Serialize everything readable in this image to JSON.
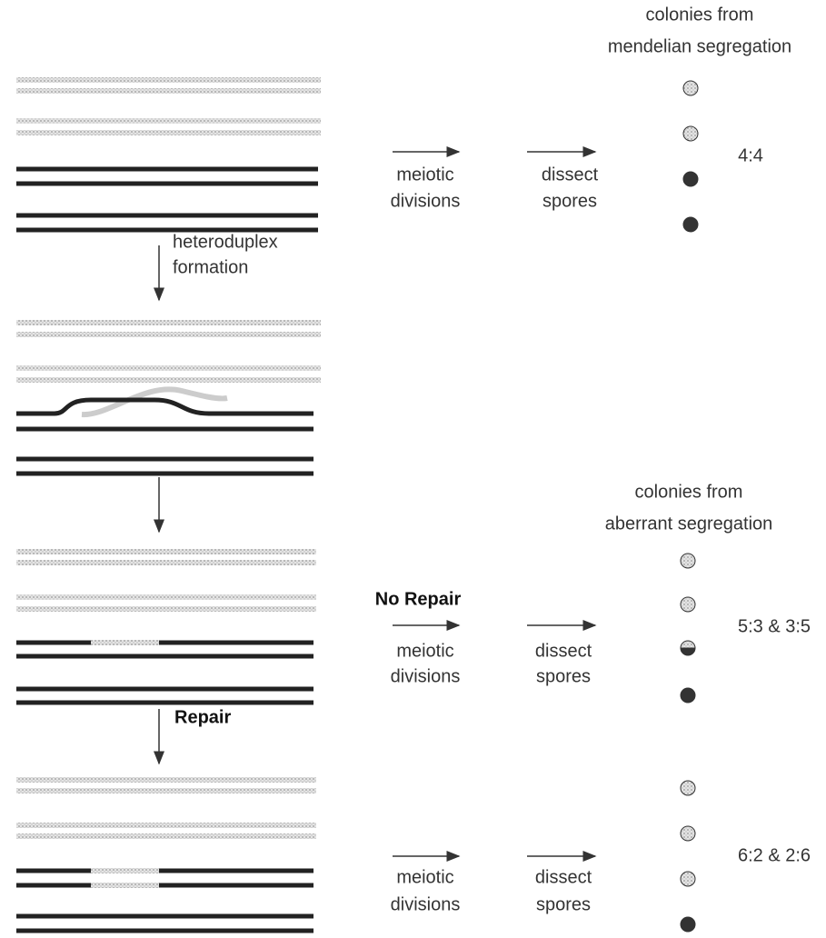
{
  "panels": [
    {
      "heading": [
        "colonies from",
        "mendelian segregation"
      ],
      "steps": [
        [
          "meiotic",
          "divisions"
        ],
        [
          "dissect",
          "spores"
        ]
      ],
      "ratio": "4:4"
    },
    {
      "heading": [
        "colonies from",
        "aberrant segregation"
      ],
      "label": "No Repair",
      "steps": [
        [
          "meiotic",
          "divisions"
        ],
        [
          "dissect",
          "spores"
        ]
      ],
      "ratio": "5:3 & 3:5"
    },
    {
      "steps": [
        [
          "meiotic",
          "divisions"
        ],
        [
          "dissect",
          "spores"
        ]
      ],
      "ratio": "6:2 & 2:6"
    }
  ],
  "transitions": [
    [
      "heteroduplex",
      "formation"
    ],
    [
      "Repair"
    ]
  ]
}
